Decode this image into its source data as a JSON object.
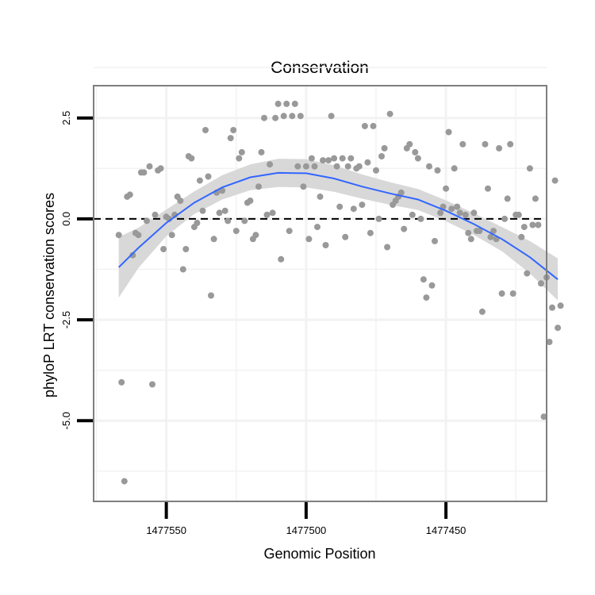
{
  "chart_data": {
    "type": "scatter",
    "title": "Conservation",
    "xlabel": "Genomic Position",
    "ylabel": "phyloP LRT conservation scores",
    "x_reversed": true,
    "xlim": [
      1477576,
      1477414
    ],
    "ylim": [
      -7.0,
      3.3
    ],
    "x_ticks": [
      1477550,
      1477500,
      1477450
    ],
    "y_ticks": [
      2.5,
      0.0,
      -2.5,
      -5.0
    ],
    "y_tick_labels": [
      "2.5",
      "0.0",
      "-2.5",
      "-5.0"
    ],
    "grid": true,
    "reference_line": {
      "y": 0,
      "style": "dashed"
    },
    "colors": {
      "points": "#999999",
      "smooth_line": "#3366FF",
      "ribbon": "#d4d4d4",
      "grid": "#f2f2f2",
      "panel_border": "#7f7f7f"
    },
    "points": [
      {
        "x": 1477567,
        "y": -0.4
      },
      {
        "x": 1477566,
        "y": -4.05
      },
      {
        "x": 1477565,
        "y": -6.5
      },
      {
        "x": 1477564,
        "y": 0.55
      },
      {
        "x": 1477563,
        "y": 0.6
      },
      {
        "x": 1477562,
        "y": -0.9
      },
      {
        "x": 1477561,
        "y": -0.35
      },
      {
        "x": 1477560,
        "y": -0.4
      },
      {
        "x": 1477559,
        "y": 1.15
      },
      {
        "x": 1477558,
        "y": 1.15
      },
      {
        "x": 1477557,
        "y": -0.05
      },
      {
        "x": 1477556,
        "y": 1.3
      },
      {
        "x": 1477555,
        "y": -4.1
      },
      {
        "x": 1477554,
        "y": 0.1
      },
      {
        "x": 1477553,
        "y": 1.2
      },
      {
        "x": 1477552,
        "y": 1.25
      },
      {
        "x": 1477551,
        "y": -0.75
      },
      {
        "x": 1477550,
        "y": 0.05
      },
      {
        "x": 1477549,
        "y": 0.0
      },
      {
        "x": 1477548,
        "y": -0.4
      },
      {
        "x": 1477547,
        "y": 0.1
      },
      {
        "x": 1477546,
        "y": 0.55
      },
      {
        "x": 1477545,
        "y": 0.45
      },
      {
        "x": 1477544,
        "y": -1.25
      },
      {
        "x": 1477543,
        "y": -0.75
      },
      {
        "x": 1477542,
        "y": 1.55
      },
      {
        "x": 1477541,
        "y": 1.5
      },
      {
        "x": 1477540,
        "y": -0.2
      },
      {
        "x": 1477539,
        "y": -0.1
      },
      {
        "x": 1477538,
        "y": 0.95
      },
      {
        "x": 1477537,
        "y": 0.2
      },
      {
        "x": 1477536,
        "y": 2.2
      },
      {
        "x": 1477535,
        "y": 1.05
      },
      {
        "x": 1477534,
        "y": -1.9
      },
      {
        "x": 1477533,
        "y": -0.5
      },
      {
        "x": 1477532,
        "y": 0.65
      },
      {
        "x": 1477531,
        "y": 0.15
      },
      {
        "x": 1477530,
        "y": 0.7
      },
      {
        "x": 1477529,
        "y": 0.2
      },
      {
        "x": 1477528,
        "y": -0.05
      },
      {
        "x": 1477527,
        "y": 2.0
      },
      {
        "x": 1477526,
        "y": 2.2
      },
      {
        "x": 1477525,
        "y": -0.3
      },
      {
        "x": 1477524,
        "y": 1.5
      },
      {
        "x": 1477523,
        "y": 1.65
      },
      {
        "x": 1477522,
        "y": -0.05
      },
      {
        "x": 1477521,
        "y": 0.4
      },
      {
        "x": 1477520,
        "y": 0.45
      },
      {
        "x": 1477519,
        "y": -0.5
      },
      {
        "x": 1477518,
        "y": -0.4
      },
      {
        "x": 1477517,
        "y": 0.8
      },
      {
        "x": 1477516,
        "y": 1.65
      },
      {
        "x": 1477515,
        "y": 2.5
      },
      {
        "x": 1477514,
        "y": 0.1
      },
      {
        "x": 1477513,
        "y": 1.35
      },
      {
        "x": 1477512,
        "y": 0.15
      },
      {
        "x": 1477511,
        "y": 2.5
      },
      {
        "x": 1477510,
        "y": 2.85
      },
      {
        "x": 1477509,
        "y": -1.0
      },
      {
        "x": 1477508,
        "y": 2.55
      },
      {
        "x": 1477507,
        "y": 2.85
      },
      {
        "x": 1477506,
        "y": -0.3
      },
      {
        "x": 1477505,
        "y": 2.55
      },
      {
        "x": 1477504,
        "y": 2.85
      },
      {
        "x": 1477503,
        "y": 1.3
      },
      {
        "x": 1477502,
        "y": 2.55
      },
      {
        "x": 1477501,
        "y": 0.8
      },
      {
        "x": 1477500,
        "y": 1.3
      },
      {
        "x": 1477499,
        "y": -0.5
      },
      {
        "x": 1477498,
        "y": 1.5
      },
      {
        "x": 1477497,
        "y": 1.3
      },
      {
        "x": 1477496,
        "y": -0.2
      },
      {
        "x": 1477495,
        "y": 0.55
      },
      {
        "x": 1477494,
        "y": 1.45
      },
      {
        "x": 1477493,
        "y": -0.65
      },
      {
        "x": 1477492,
        "y": 1.45
      },
      {
        "x": 1477491,
        "y": 2.55
      },
      {
        "x": 1477490,
        "y": 1.5
      },
      {
        "x": 1477489,
        "y": 1.3
      },
      {
        "x": 1477488,
        "y": 0.3
      },
      {
        "x": 1477487,
        "y": 1.5
      },
      {
        "x": 1477486,
        "y": -0.45
      },
      {
        "x": 1477485,
        "y": 1.3
      },
      {
        "x": 1477484,
        "y": 1.5
      },
      {
        "x": 1477483,
        "y": 0.25
      },
      {
        "x": 1477482,
        "y": 1.25
      },
      {
        "x": 1477481,
        "y": 1.3
      },
      {
        "x": 1477480,
        "y": 0.35
      },
      {
        "x": 1477479,
        "y": 2.3
      },
      {
        "x": 1477478,
        "y": 1.4
      },
      {
        "x": 1477477,
        "y": -0.35
      },
      {
        "x": 1477476,
        "y": 2.3
      },
      {
        "x": 1477475,
        "y": 1.2
      },
      {
        "x": 1477474,
        "y": 0.0
      },
      {
        "x": 1477473,
        "y": 1.55
      },
      {
        "x": 1477472,
        "y": 1.75
      },
      {
        "x": 1477471,
        "y": -0.7
      },
      {
        "x": 1477470,
        "y": 2.6
      },
      {
        "x": 1477469,
        "y": 0.35
      },
      {
        "x": 1477468,
        "y": 0.45
      },
      {
        "x": 1477467,
        "y": 0.55
      },
      {
        "x": 1477466,
        "y": 0.65
      },
      {
        "x": 1477465,
        "y": -0.25
      },
      {
        "x": 1477464,
        "y": 1.75
      },
      {
        "x": 1477463,
        "y": 1.85
      },
      {
        "x": 1477462,
        "y": 0.1
      },
      {
        "x": 1477461,
        "y": 1.65
      },
      {
        "x": 1477460,
        "y": 1.5
      },
      {
        "x": 1477459,
        "y": 0.0
      },
      {
        "x": 1477458,
        "y": -1.5
      },
      {
        "x": 1477457,
        "y": -1.95
      },
      {
        "x": 1477456,
        "y": 1.3
      },
      {
        "x": 1477455,
        "y": -1.65
      },
      {
        "x": 1477454,
        "y": -0.55
      },
      {
        "x": 1477453,
        "y": 1.2
      },
      {
        "x": 1477452,
        "y": 0.15
      },
      {
        "x": 1477451,
        "y": 0.3
      },
      {
        "x": 1477450,
        "y": 0.75
      },
      {
        "x": 1477449,
        "y": 2.15
      },
      {
        "x": 1477448,
        "y": 0.25
      },
      {
        "x": 1477447,
        "y": 1.25
      },
      {
        "x": 1477446,
        "y": 0.3
      },
      {
        "x": 1477445,
        "y": 0.15
      },
      {
        "x": 1477444,
        "y": 1.85
      },
      {
        "x": 1477443,
        "y": 0.1
      },
      {
        "x": 1477442,
        "y": -0.35
      },
      {
        "x": 1477441,
        "y": -0.5
      },
      {
        "x": 1477440,
        "y": 0.15
      },
      {
        "x": 1477439,
        "y": -0.3
      },
      {
        "x": 1477438,
        "y": -0.3
      },
      {
        "x": 1477437,
        "y": -2.3
      },
      {
        "x": 1477436,
        "y": 1.85
      },
      {
        "x": 1477435,
        "y": 0.75
      },
      {
        "x": 1477434,
        "y": -0.45
      },
      {
        "x": 1477433,
        "y": -0.3
      },
      {
        "x": 1477432,
        "y": -0.5
      },
      {
        "x": 1477431,
        "y": 1.75
      },
      {
        "x": 1477430,
        "y": -1.85
      },
      {
        "x": 1477429,
        "y": 0.0
      },
      {
        "x": 1477428,
        "y": 0.5
      },
      {
        "x": 1477427,
        "y": 1.85
      },
      {
        "x": 1477426,
        "y": -1.85
      },
      {
        "x": 1477425,
        "y": 0.1
      },
      {
        "x": 1477424,
        "y": 0.1
      },
      {
        "x": 1477423,
        "y": -0.45
      },
      {
        "x": 1477422,
        "y": -0.2
      },
      {
        "x": 1477421,
        "y": -1.35
      },
      {
        "x": 1477420,
        "y": 1.25
      },
      {
        "x": 1477419,
        "y": -0.15
      },
      {
        "x": 1477418,
        "y": 0.5
      },
      {
        "x": 1477417,
        "y": -0.15
      },
      {
        "x": 1477416,
        "y": -1.6
      },
      {
        "x": 1477415,
        "y": -4.9
      },
      {
        "x": 1477414,
        "y": -1.45
      },
      {
        "x": 1477413,
        "y": -3.05
      },
      {
        "x": 1477412,
        "y": -2.2
      },
      {
        "x": 1477411,
        "y": 0.95
      },
      {
        "x": 1477410,
        "y": -2.7
      },
      {
        "x": 1477409,
        "y": -2.15
      }
    ],
    "smooth_line": [
      {
        "x": 1477567,
        "y": -1.2
      },
      {
        "x": 1477560,
        "y": -0.72
      },
      {
        "x": 1477550,
        "y": -0.1
      },
      {
        "x": 1477540,
        "y": 0.4
      },
      {
        "x": 1477530,
        "y": 0.78
      },
      {
        "x": 1477520,
        "y": 1.03
      },
      {
        "x": 1477510,
        "y": 1.14
      },
      {
        "x": 1477500,
        "y": 1.13
      },
      {
        "x": 1477490,
        "y": 1.0
      },
      {
        "x": 1477480,
        "y": 0.8
      },
      {
        "x": 1477470,
        "y": 0.63
      },
      {
        "x": 1477460,
        "y": 0.48
      },
      {
        "x": 1477450,
        "y": 0.2
      },
      {
        "x": 1477440,
        "y": -0.13
      },
      {
        "x": 1477430,
        "y": -0.5
      },
      {
        "x": 1477420,
        "y": -0.95
      },
      {
        "x": 1477410,
        "y": -1.5
      }
    ],
    "ribbon_halfwidth": [
      0.75,
      0.5,
      0.33,
      0.28,
      0.3,
      0.32,
      0.35,
      0.35,
      0.33,
      0.3,
      0.28,
      0.26,
      0.26,
      0.27,
      0.3,
      0.4,
      0.52
    ]
  }
}
